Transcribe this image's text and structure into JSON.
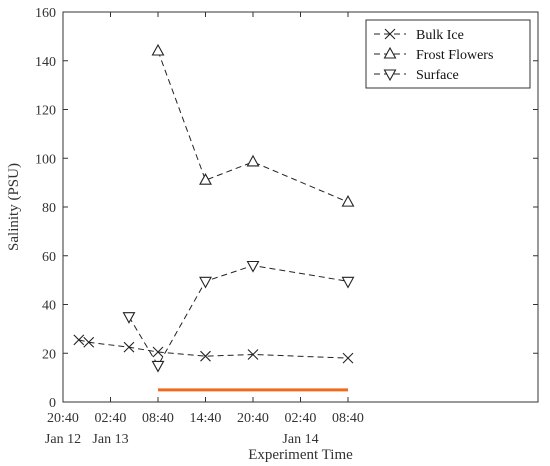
{
  "chart_data": {
    "type": "line",
    "title": "",
    "xlabel": "Experiment Time",
    "ylabel": "Salinity (PSU)",
    "xlim": [
      "Jan 12 20:40",
      "Jan 15 08:40"
    ],
    "ylim": [
      0,
      160
    ],
    "yticks": [
      0,
      20,
      40,
      60,
      80,
      100,
      120,
      140,
      160
    ],
    "xticks": [
      {
        "x": "Jan 12 20:40",
        "label": "20:40",
        "sublabel": "Jan 12"
      },
      {
        "x": "Jan 13 02:40",
        "label": "02:40",
        "sublabel": "Jan 13"
      },
      {
        "x": "Jan 13 08:40",
        "label": "08:40",
        "sublabel": ""
      },
      {
        "x": "Jan 13 14:40",
        "label": "14:40",
        "sublabel": ""
      },
      {
        "x": "Jan 13 20:40",
        "label": "20:40",
        "sublabel": ""
      },
      {
        "x": "Jan 14 02:40",
        "label": "02:40",
        "sublabel": "Jan 14"
      },
      {
        "x": "Jan 14 08:40",
        "label": "08:40",
        "sublabel": ""
      }
    ],
    "grid": false,
    "legend_position": "top-right",
    "series": [
      {
        "name": "Bulk Ice",
        "marker": "x",
        "line_style": "dashed",
        "color": "#222222",
        "points": [
          {
            "x": "Jan 12 22:40",
            "y": 25.5
          },
          {
            "x": "Jan 12 23:55",
            "y": 24.5
          },
          {
            "x": "Jan 13 05:00",
            "y": 22.5
          },
          {
            "x": "Jan 13 08:40",
            "y": 20.5
          },
          {
            "x": "Jan 13 14:40",
            "y": 18.8
          },
          {
            "x": "Jan 13 20:40",
            "y": 19.5
          },
          {
            "x": "Jan 14 08:40",
            "y": 18.0
          }
        ]
      },
      {
        "name": "Frost Flowers",
        "marker": "triangle-up",
        "line_style": "dashed",
        "color": "#222222",
        "points": [
          {
            "x": "Jan 13 08:40",
            "y": 144
          },
          {
            "x": "Jan 13 14:40",
            "y": 91
          },
          {
            "x": "Jan 13 20:40",
            "y": 98.5
          },
          {
            "x": "Jan 14 08:40",
            "y": 82
          }
        ]
      },
      {
        "name": "Surface",
        "marker": "triangle-down",
        "line_style": "dashed",
        "color": "#222222",
        "points": [
          {
            "x": "Jan 13 05:00",
            "y": 35
          },
          {
            "x": "Jan 13 08:40",
            "y": 15
          },
          {
            "x": "Jan 13 14:40",
            "y": 49.5
          },
          {
            "x": "Jan 13 20:40",
            "y": 56
          },
          {
            "x": "Jan 14 08:40",
            "y": 49.5
          }
        ]
      }
    ],
    "highlight_bar": {
      "x_start": "Jan 13 08:40",
      "x_end": "Jan 14 08:40",
      "y": 5,
      "color": "#f06a1e"
    }
  }
}
